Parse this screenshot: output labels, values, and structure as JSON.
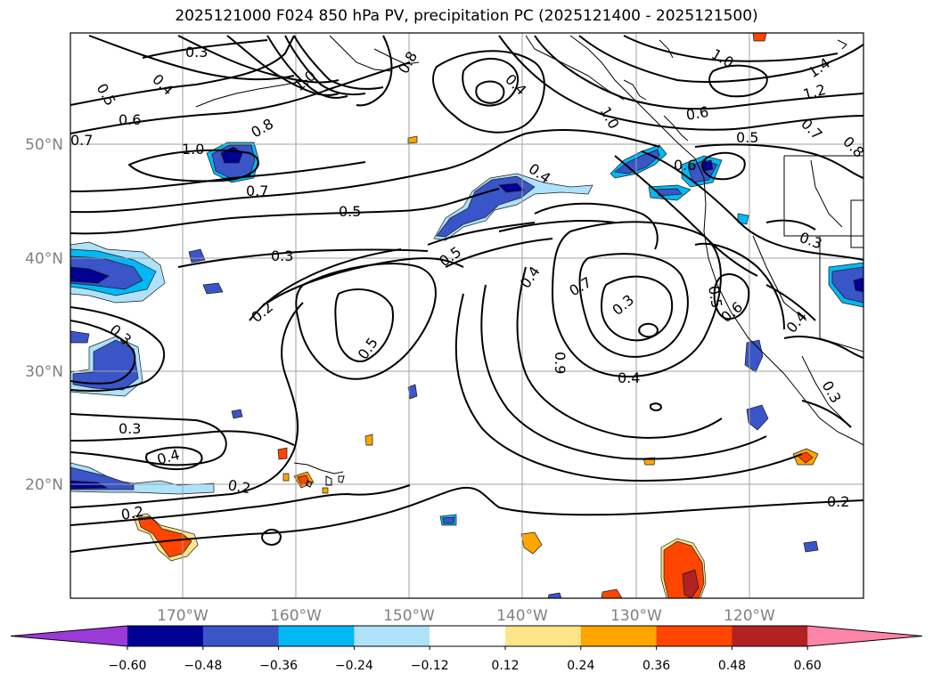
{
  "title": "2025121000 F024 850 hPa PV, precipitation PC (2025121400 - 2025121500)",
  "lat_labels": [
    "50°N",
    "40°N",
    "30°N",
    "20°N"
  ],
  "lon_labels": [
    "170°W",
    "160°W",
    "150°W",
    "140°W",
    "130°W",
    "120°W"
  ],
  "colorbar": {
    "colors": [
      "#9c3ad8",
      "#000092",
      "#3a55c8",
      "#00b9f5",
      "#aee2fb",
      "#ffffff",
      "#fde68a",
      "#ffa500",
      "#ff4500",
      "#b22222",
      "#ff85a8"
    ],
    "ticks": [
      "−0.60",
      "−0.48",
      "−0.36",
      "−0.24",
      "−0.12",
      "0.12",
      "0.24",
      "0.36",
      "0.48",
      "0.60"
    ]
  },
  "contour_labels": [
    "0.3",
    "0.5",
    "0.4",
    "0.6",
    "0.7",
    "1.0",
    "0.8",
    "1.0",
    "0.8",
    "0.4",
    "1.0",
    "1.4",
    "1.2",
    "0.6",
    "0.7",
    "0.8",
    "0.5",
    "0.6",
    "1.0",
    "0.7",
    "0.4",
    "0.5",
    "0.3",
    "0.5",
    "0.3",
    "0.2",
    "0.4",
    "0.7",
    "0.3",
    "0.5",
    "0.6",
    "0.3",
    "0.5",
    "0.4",
    "0.9",
    "0.4",
    "0.3",
    "0.3",
    "0.4",
    "0.2",
    "0.2",
    "0.2"
  ]
}
